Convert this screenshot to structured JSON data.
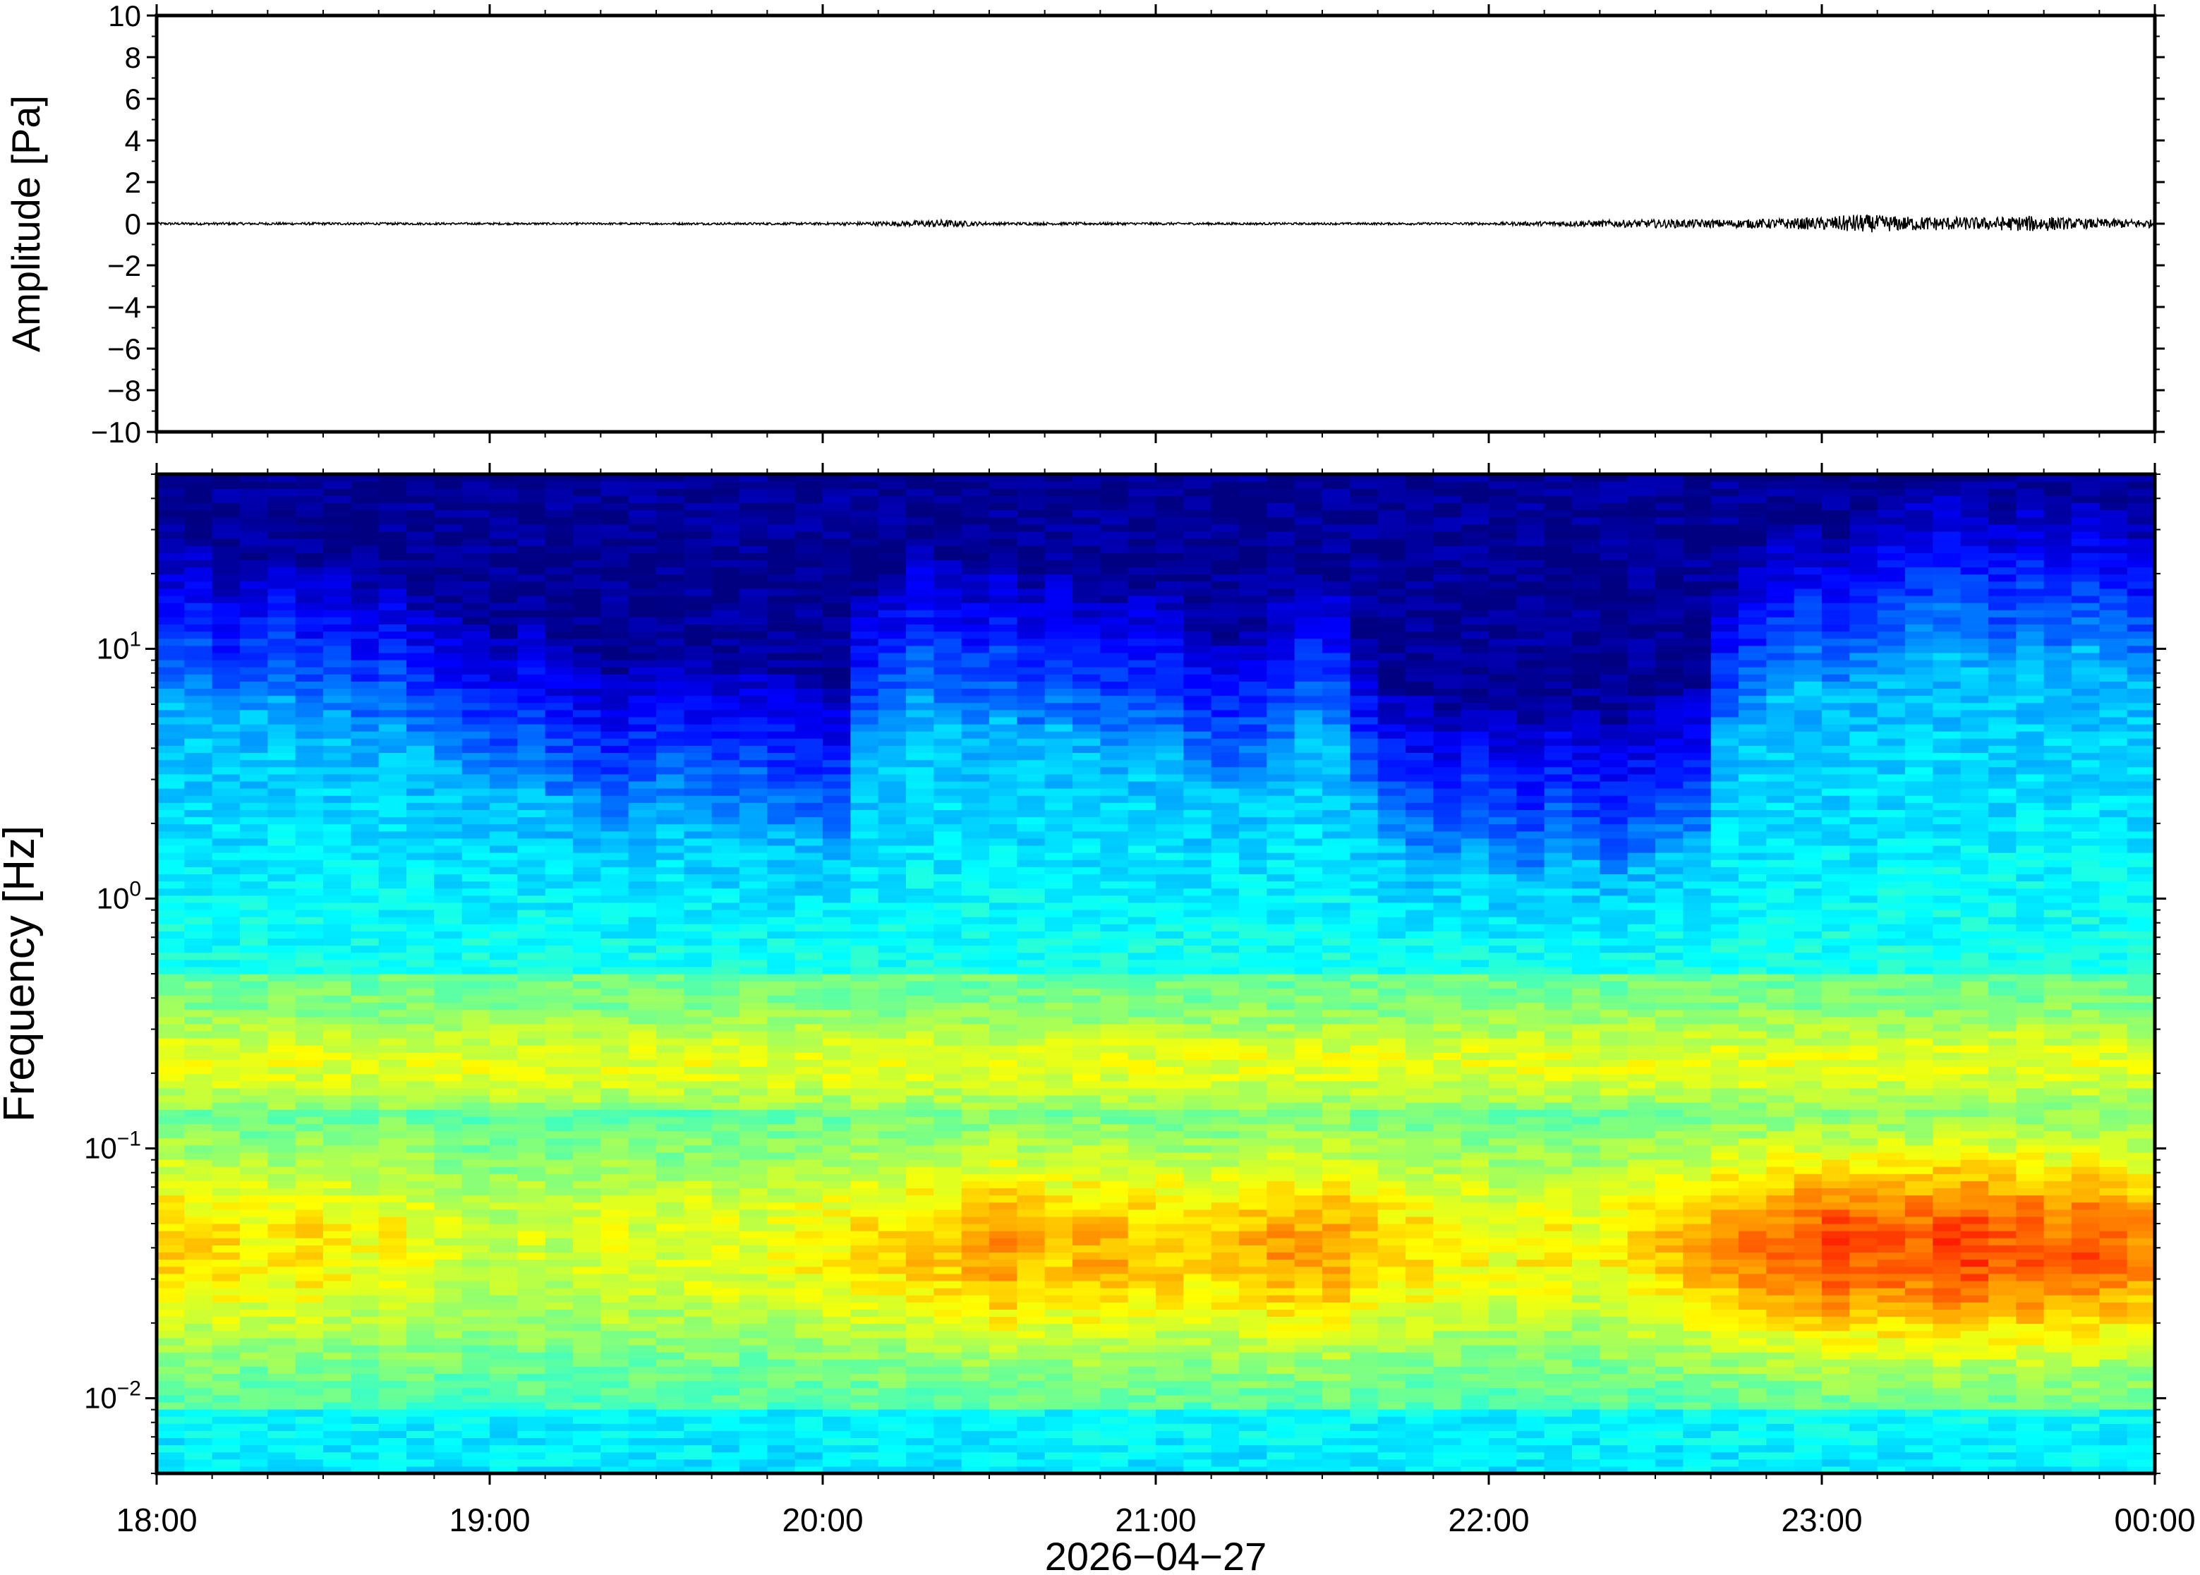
{
  "chart_data": [
    {
      "type": "line",
      "panel": "waveform",
      "ylabel": "Amplitude [Pa]",
      "ylim": [
        -10,
        10
      ],
      "yticks": [
        10,
        8,
        6,
        4,
        2,
        0,
        -2,
        -4,
        -6,
        -8,
        -10
      ],
      "ytick_labels": [
        "10",
        "8",
        "6",
        "4",
        "2",
        "0",
        "−2",
        "−4",
        "−6",
        "−8",
        "−10"
      ],
      "x_range_hours": [
        18,
        24
      ],
      "trace_envelope": {
        "x_hours": [
          18.0,
          18.5,
          19.0,
          19.5,
          20.0,
          20.25,
          20.35,
          20.5,
          21.0,
          21.5,
          22.0,
          22.3,
          22.5,
          22.75,
          23.0,
          23.1,
          23.25,
          23.5,
          23.65,
          23.75,
          24.0
        ],
        "half_amplitude_pa": [
          0.06,
          0.06,
          0.05,
          0.05,
          0.06,
          0.12,
          0.2,
          0.07,
          0.06,
          0.05,
          0.06,
          0.15,
          0.2,
          0.2,
          0.3,
          0.45,
          0.35,
          0.3,
          0.4,
          0.25,
          0.2
        ]
      },
      "color": "#000000"
    },
    {
      "type": "heatmap",
      "panel": "spectrogram",
      "ylabel": "Frequency [Hz]",
      "xlabel": "2026−04−27",
      "yscale": "log",
      "ylim_hz": [
        0.005,
        50
      ],
      "yticks_hz": [
        10,
        1,
        0.1,
        0.01
      ],
      "ytick_labels": [
        {
          "base": "10",
          "exp": "1"
        },
        {
          "base": "10",
          "exp": "0"
        },
        {
          "base": "10",
          "exp": "−1"
        },
        {
          "base": "10",
          "exp": "−2"
        }
      ],
      "x_ticks": [
        "18:00",
        "19:00",
        "20:00",
        "21:00",
        "22:00",
        "23:00",
        "00:00"
      ],
      "colormap": "jet",
      "columns": 72,
      "noise_cutoff_log10_hz": [
        1.15,
        1.15,
        1.05,
        1.1,
        1.15,
        1.05,
        1.1,
        1.0,
        1.05,
        0.95,
        0.9,
        0.85,
        0.8,
        0.85,
        0.75,
        0.7,
        0.65,
        0.7,
        0.75,
        0.7,
        0.65,
        0.7,
        0.65,
        0.6,
        0.6,
        0.95,
        1.05,
        1.15,
        1.1,
        1.05,
        1.1,
        1.0,
        1.05,
        1.0,
        0.95,
        1.0,
        0.95,
        0.85,
        0.8,
        0.85,
        0.95,
        1.05,
        1.0,
        0.75,
        0.6,
        0.55,
        0.5,
        0.55,
        0.5,
        0.45,
        0.55,
        0.5,
        0.45,
        0.5,
        0.55,
        0.6,
        1.0,
        1.1,
        1.2,
        1.25,
        1.2,
        1.25,
        1.3,
        1.35,
        1.4,
        1.35,
        1.3,
        1.35,
        1.3,
        1.35,
        1.3,
        1.25
      ],
      "low_band_power": [
        0.55,
        0.5,
        0.5,
        0.45,
        0.45,
        0.5,
        0.45,
        0.4,
        0.45,
        0.4,
        0.35,
        0.3,
        0.3,
        0.35,
        0.3,
        0.35,
        0.4,
        0.35,
        0.35,
        0.4,
        0.4,
        0.35,
        0.4,
        0.45,
        0.45,
        0.5,
        0.5,
        0.55,
        0.55,
        0.6,
        0.65,
        0.6,
        0.55,
        0.6,
        0.6,
        0.55,
        0.55,
        0.5,
        0.55,
        0.6,
        0.65,
        0.6,
        0.65,
        0.55,
        0.5,
        0.5,
        0.45,
        0.45,
        0.4,
        0.45,
        0.45,
        0.4,
        0.45,
        0.5,
        0.55,
        0.6,
        0.65,
        0.7,
        0.75,
        0.8,
        0.85,
        0.8,
        0.8,
        0.8,
        0.85,
        0.85,
        0.8,
        0.8,
        0.75,
        0.8,
        0.75,
        0.7
      ],
      "microbarom_band_hz": [
        0.15,
        0.35
      ]
    }
  ],
  "colors": {
    "frame": "#000000",
    "background": "#ffffff"
  }
}
